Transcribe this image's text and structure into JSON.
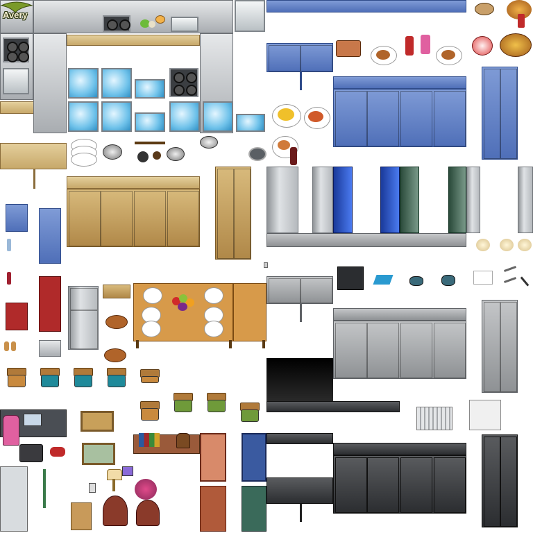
{
  "tileset": {
    "author_label": "Avery"
  },
  "colors": {
    "steel": "#b5b9bd",
    "wood": "#d2b57a",
    "blue_cabinet": "#5f7fc4",
    "grey_cabinet": "#a4a7aa",
    "dark_cabinet": "#3a3c3f",
    "water": "#6fc2ea",
    "table_wood": "#c98a3e",
    "chair_teal": "#1f8a9a",
    "chair_green": "#6f9a3a"
  },
  "icons": [
    "stove-icon",
    "sink-icon",
    "refrigerator-icon",
    "microwave-icon",
    "dish-stack-icon",
    "pot-icon",
    "frying-pan-icon",
    "fruit-bowl-icon",
    "curry-plate-icon",
    "cake-icon",
    "bread-icon",
    "chair-icon",
    "bookshelf-icon",
    "radiator-icon",
    "lamp-icon",
    "cork-board-icon"
  ]
}
